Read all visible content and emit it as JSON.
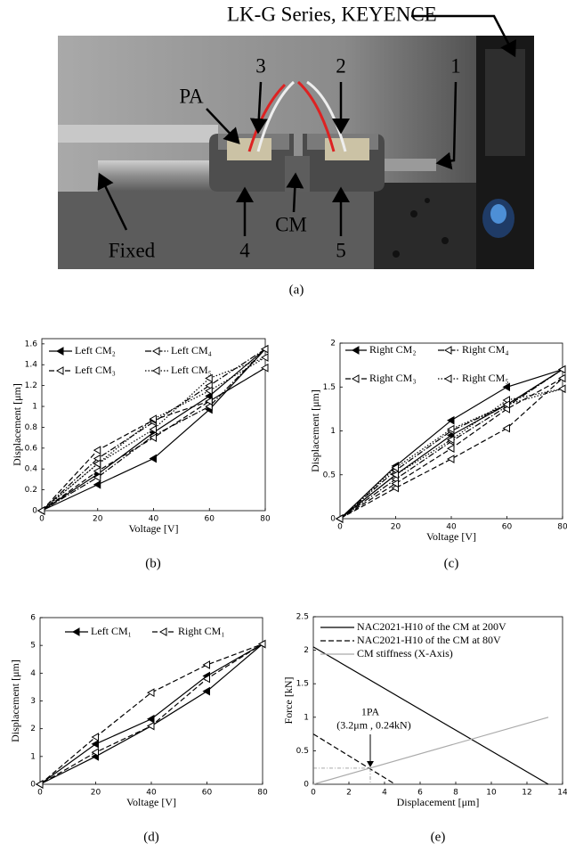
{
  "photo": {
    "labels": [
      "LK-G Series, KEYENCE",
      "1",
      "2",
      "3",
      "PA",
      "Fixed",
      "4",
      "CM",
      "5"
    ]
  },
  "captions": [
    "(a)",
    "(b)",
    "(c)",
    "(d)",
    "(e)"
  ],
  "chart_data": [
    {
      "type": "line",
      "xlabel": "Voltage [V]",
      "ylabel": "Displacement [μm]",
      "x": [
        0,
        20,
        40,
        60,
        80,
        60,
        40,
        20,
        0
      ],
      "xlim": [
        0,
        80
      ],
      "xticks": [
        0,
        20,
        40,
        60,
        80
      ],
      "ylim": [
        0,
        1.65
      ],
      "yticks": [
        0,
        0.2,
        0.4,
        0.6,
        0.8,
        1,
        1.2,
        1.4,
        1.6
      ],
      "series": [
        {
          "name": "Left CM₂",
          "color": "#000000",
          "dash": "solid",
          "marker": "filled-triangle",
          "values": [
            0,
            0.25,
            0.5,
            0.97,
            1.55,
            1.1,
            0.75,
            0.35,
            0
          ]
        },
        {
          "name": "Left CM₄",
          "color": "#000000",
          "dash": "dashdot",
          "marker": "open-triangle",
          "values": [
            0,
            0.32,
            0.72,
            1.0,
            1.55,
            1.2,
            0.85,
            0.5,
            0
          ]
        },
        {
          "name": "Left CM₃",
          "color": "#000000",
          "dash": "dashed",
          "marker": "open-triangle",
          "values": [
            0,
            0.58,
            0.87,
            1.05,
            1.37,
            1.05,
            0.7,
            0.38,
            0
          ]
        },
        {
          "name": "Left CM₅",
          "color": "#000000",
          "dash": "dotted",
          "marker": "open-triangle",
          "values": [
            0,
            0.45,
            0.78,
            1.27,
            1.47,
            1.15,
            0.88,
            0.45,
            0
          ]
        }
      ]
    },
    {
      "type": "line",
      "xlabel": "Voltage [V]",
      "ylabel": "Displacement [μm]",
      "x": [
        0,
        20,
        40,
        60,
        80,
        60,
        40,
        20,
        0
      ],
      "xlim": [
        0,
        80
      ],
      "xticks": [
        0,
        20,
        40,
        60,
        80
      ],
      "ylim": [
        0,
        2
      ],
      "yticks": [
        0,
        0.5,
        1,
        1.5,
        2
      ],
      "series": [
        {
          "name": "Right CM₂",
          "color": "#000000",
          "dash": "solid",
          "marker": "filled-triangle",
          "values": [
            0,
            0.6,
            1.12,
            1.5,
            1.7,
            1.3,
            0.95,
            0.5,
            0
          ]
        },
        {
          "name": "Right CM₄",
          "color": "#000000",
          "dash": "dashdot",
          "marker": "open-triangle",
          "values": [
            0,
            0.55,
            1.0,
            1.3,
            1.7,
            1.28,
            0.88,
            0.45,
            0
          ]
        },
        {
          "name": "Right CM₃",
          "color": "#000000",
          "dash": "dashed",
          "marker": "open-triangle",
          "values": [
            0,
            0.35,
            0.68,
            1.03,
            1.6,
            1.25,
            0.8,
            0.4,
            0
          ]
        },
        {
          "name": "Right CM₅",
          "color": "#000000",
          "dash": "dotted",
          "marker": "open-triangle",
          "values": [
            0,
            0.5,
            0.9,
            1.35,
            1.48,
            1.3,
            1.02,
            0.58,
            0
          ]
        }
      ]
    },
    {
      "type": "line",
      "xlabel": "Voltage [V]",
      "ylabel": "Displacement [μm]",
      "x": [
        0,
        20,
        40,
        60,
        80,
        60,
        40,
        20,
        0
      ],
      "xlim": [
        0,
        80
      ],
      "xticks": [
        0,
        20,
        40,
        60,
        80
      ],
      "ylim": [
        0,
        6
      ],
      "yticks": [
        0,
        1,
        2,
        3,
        4,
        5,
        6
      ],
      "series": [
        {
          "name": "Left CM₁",
          "color": "#000000",
          "dash": "solid",
          "marker": "filled-triangle",
          "values": [
            0,
            1.0,
            2.1,
            3.35,
            5.05,
            3.9,
            2.35,
            1.45,
            0
          ]
        },
        {
          "name": "Right CM₁",
          "color": "#000000",
          "dash": "dashed",
          "marker": "open-triangle",
          "values": [
            0,
            1.7,
            3.3,
            4.3,
            5.05,
            3.8,
            2.1,
            1.15,
            0
          ]
        }
      ]
    },
    {
      "type": "line",
      "xlabel": "Displacement [μm]",
      "ylabel": "Force [kN]",
      "xlim": [
        0,
        14
      ],
      "xticks": [
        0,
        2,
        4,
        6,
        8,
        10,
        12,
        14
      ],
      "ylim": [
        0,
        2.5
      ],
      "yticks": [
        0,
        0.5,
        1,
        1.5,
        2,
        2.5
      ],
      "series": [
        {
          "name": "NAC2021-H10 of the CM at 200V",
          "color": "#000000",
          "dash": "solid",
          "x": [
            0,
            13.2
          ],
          "values": [
            2.05,
            0
          ]
        },
        {
          "name": "NAC2021-H10 of the CM at 80V",
          "color": "#000000",
          "dash": "dashed",
          "x": [
            0,
            4.6
          ],
          "values": [
            0.75,
            0
          ]
        },
        {
          "name": "CM stiffness (X-Axis)",
          "color": "#aaaaaa",
          "dash": "solid",
          "x": [
            0,
            13.2
          ],
          "values": [
            0,
            1.0
          ]
        }
      ],
      "annotations": [
        "1PA",
        "(3.2μm , 0.24kN)"
      ],
      "reference_point": {
        "x": 3.2,
        "y": 0.24
      }
    }
  ]
}
